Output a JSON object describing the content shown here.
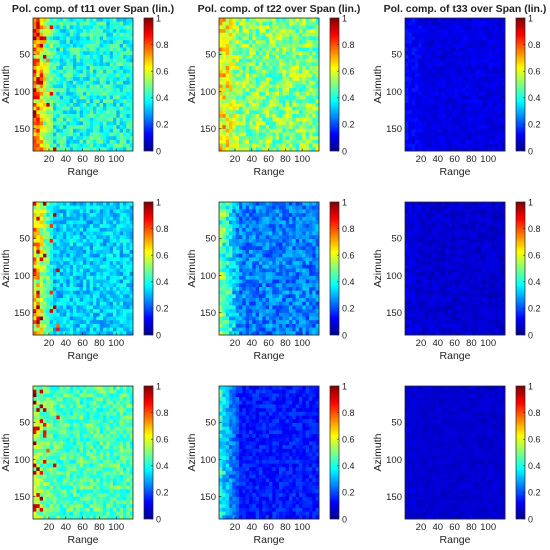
{
  "chart_data": {
    "type": "heatmap",
    "column_titles": [
      "Pol. comp. of t11 over Span (lin.)",
      "Pol. comp. of t22 over Span (lin.)",
      "Pol. comp. of t33 over Span (lin.)"
    ],
    "xlabel": "Range",
    "ylabel": "Azimuth",
    "xlim": [
      1,
      120
    ],
    "ylim": [
      1,
      180
    ],
    "x_ticks": [
      20,
      40,
      60,
      80,
      100
    ],
    "y_ticks": [
      50,
      100,
      150
    ],
    "colorbar": {
      "ticks": [
        "0",
        "0.2",
        "0.4",
        "0.6",
        "0.8",
        "1"
      ],
      "range": [
        0,
        1
      ],
      "colormap": "jet"
    },
    "panels": [
      {
        "row": 1,
        "col": 1,
        "mean": 0.4,
        "variation": 0.1,
        "edge": 0.85,
        "left": "hot-spots"
      },
      {
        "row": 1,
        "col": 2,
        "mean": 0.5,
        "variation": 0.12,
        "edge": 0.7,
        "left": "bright"
      },
      {
        "row": 1,
        "col": 3,
        "mean": 0.1,
        "variation": 0.03,
        "edge": 0.14,
        "left": "none"
      },
      {
        "row": 2,
        "col": 1,
        "mean": 0.33,
        "variation": 0.08,
        "edge": 0.8,
        "left": "hot-spots"
      },
      {
        "row": 2,
        "col": 2,
        "mean": 0.25,
        "variation": 0.08,
        "edge": 0.55,
        "left": "bright"
      },
      {
        "row": 2,
        "col": 3,
        "mean": 0.08,
        "variation": 0.03,
        "edge": 0.1,
        "left": "none"
      },
      {
        "row": 3,
        "col": 1,
        "mean": 0.45,
        "variation": 0.09,
        "edge": 0.55,
        "left": "hot-spots"
      },
      {
        "row": 3,
        "col": 2,
        "mean": 0.15,
        "variation": 0.05,
        "edge": 0.45,
        "left": "bright"
      },
      {
        "row": 3,
        "col": 3,
        "mean": 0.08,
        "variation": 0.02,
        "edge": 0.09,
        "left": "none"
      }
    ]
  }
}
